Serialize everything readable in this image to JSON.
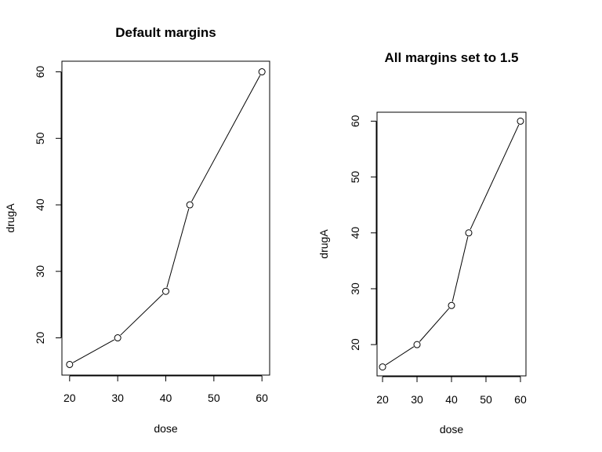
{
  "chart_data": [
    {
      "type": "line",
      "title": "Default margins",
      "xlabel": "dose",
      "ylabel": "drugA",
      "x": [
        20,
        30,
        40,
        45,
        60
      ],
      "y": [
        16,
        20,
        27,
        40,
        60
      ],
      "xticks": [
        20,
        30,
        40,
        50,
        60
      ],
      "yticks": [
        20,
        30,
        40,
        50,
        60
      ],
      "xlim": [
        18.4,
        61.6
      ],
      "ylim": [
        14.4,
        61.6
      ],
      "markers": "open-circle",
      "grid": false
    },
    {
      "type": "line",
      "title": "All margins set to 1.5",
      "xlabel": "dose",
      "ylabel": "drugA",
      "x": [
        20,
        30,
        40,
        45,
        60
      ],
      "y": [
        16,
        20,
        27,
        40,
        60
      ],
      "xticks": [
        20,
        30,
        40,
        50,
        60
      ],
      "yticks": [
        20,
        30,
        40,
        50,
        60
      ],
      "xlim": [
        18.4,
        61.6
      ],
      "ylim": [
        14.4,
        61.6
      ],
      "markers": "open-circle",
      "grid": false
    }
  ]
}
